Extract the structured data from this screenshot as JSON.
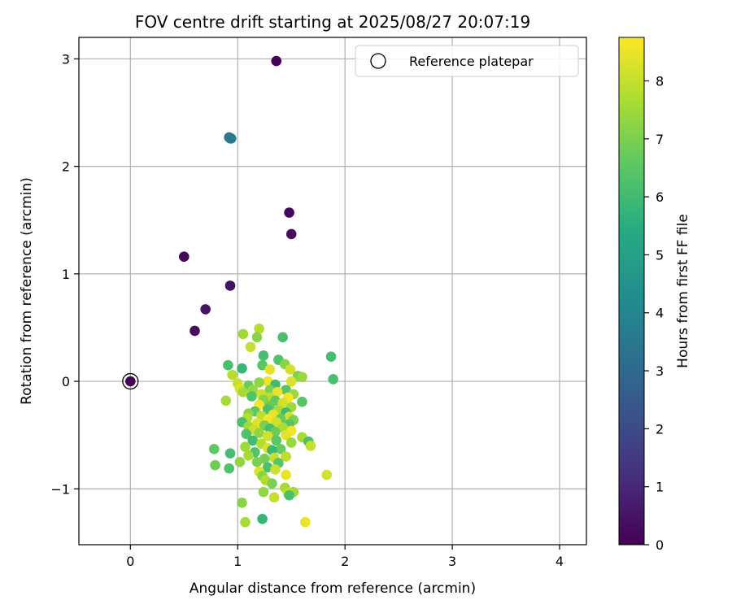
{
  "chart_data": {
    "type": "scatter",
    "title": "FOV centre drift starting at 2025/08/27 20:07:19",
    "xlabel": "Angular distance from reference (arcmin)",
    "ylabel": "Rotation from reference (arcmin)",
    "xlim": [
      -0.48,
      4.25
    ],
    "ylim": [
      -1.52,
      3.2
    ],
    "xticks": [
      0,
      1,
      2,
      3,
      4
    ],
    "xtick_labels": [
      "0",
      "1",
      "2",
      "3",
      "4"
    ],
    "yticks": [
      -1,
      0,
      1,
      2,
      3
    ],
    "ytick_labels": [
      "−1",
      "0",
      "1",
      "2",
      "3"
    ],
    "grid": true,
    "legend_position": "top-right",
    "colorbar": {
      "label": "Hours from first FF file",
      "colormap": "viridis",
      "range": [
        0,
        8.75
      ],
      "ticks": [
        0,
        1,
        2,
        3,
        4,
        5,
        6,
        7,
        8
      ],
      "tick_labels": [
        "0",
        "1",
        "2",
        "3",
        "4",
        "5",
        "6",
        "7",
        "8"
      ]
    },
    "series": [
      {
        "name": "Reference platepar",
        "marker": "open-circle",
        "points": [
          [
            0,
            0,
            0
          ]
        ]
      },
      {
        "marker": "filled-circle",
        "value_key": "hours",
        "points": [
          [
            1.36,
            2.98,
            0.1
          ],
          [
            1.48,
            1.57,
            0.2
          ],
          [
            1.5,
            1.37,
            0.3
          ],
          [
            0.5,
            1.16,
            0.2
          ],
          [
            0.93,
            0.89,
            0.4
          ],
          [
            0.7,
            0.67,
            0.5
          ],
          [
            0.6,
            0.47,
            0.3
          ],
          [
            0.93,
            2.26,
            3.6
          ],
          [
            0.94,
            2.26,
            3.7
          ],
          [
            0.92,
            2.27,
            3.5
          ],
          [
            1.2,
            0.49,
            7.8
          ],
          [
            1.05,
            0.44,
            7.5
          ],
          [
            1.18,
            0.41,
            7.2
          ],
          [
            1.42,
            0.41,
            6.2
          ],
          [
            1.12,
            0.32,
            8.0
          ],
          [
            1.24,
            0.24,
            6.1
          ],
          [
            1.87,
            0.23,
            6.1
          ],
          [
            1.38,
            0.2,
            6.3
          ],
          [
            1.44,
            0.16,
            7.2
          ],
          [
            0.91,
            0.15,
            6.2
          ],
          [
            1.23,
            0.15,
            6.5
          ],
          [
            1.04,
            0.12,
            5.8
          ],
          [
            1.3,
            0.11,
            8.4
          ],
          [
            1.49,
            0.11,
            8.2
          ],
          [
            0.95,
            0.06,
            7.8
          ],
          [
            1.56,
            0.05,
            7.0
          ],
          [
            1.6,
            0.04,
            7.4
          ],
          [
            1.89,
            0.02,
            6.2
          ],
          [
            1.28,
            0.0,
            8.6
          ],
          [
            1.5,
            0.0,
            8.3
          ],
          [
            1.2,
            -0.01,
            7.3
          ],
          [
            1.0,
            -0.02,
            8.0
          ],
          [
            1.35,
            -0.03,
            6.0
          ],
          [
            1.1,
            -0.04,
            6.7
          ],
          [
            1.02,
            -0.07,
            8.3
          ],
          [
            1.14,
            -0.08,
            7.4
          ],
          [
            1.3,
            -0.08,
            7.0
          ],
          [
            1.45,
            -0.08,
            6.4
          ],
          [
            1.05,
            -0.1,
            7.6
          ],
          [
            1.37,
            -0.1,
            8.5
          ],
          [
            1.52,
            -0.12,
            7.4
          ],
          [
            1.22,
            -0.12,
            8.1
          ],
          [
            1.13,
            -0.14,
            6.3
          ],
          [
            1.3,
            -0.15,
            7.9
          ],
          [
            1.47,
            -0.15,
            8.6
          ],
          [
            1.24,
            -0.17,
            7.2
          ],
          [
            0.89,
            -0.18,
            7.6
          ],
          [
            1.35,
            -0.18,
            6.6
          ],
          [
            1.6,
            -0.19,
            6.4
          ],
          [
            1.42,
            -0.2,
            8.2
          ],
          [
            1.2,
            -0.22,
            8.7
          ],
          [
            1.3,
            -0.23,
            6.8
          ],
          [
            1.5,
            -0.24,
            7.5
          ],
          [
            1.28,
            -0.26,
            6.2
          ],
          [
            1.38,
            -0.27,
            7.7
          ],
          [
            1.16,
            -0.28,
            6.5
          ],
          [
            1.45,
            -0.29,
            6.0
          ],
          [
            1.1,
            -0.3,
            7.2
          ],
          [
            1.33,
            -0.31,
            8.5
          ],
          [
            1.22,
            -0.32,
            7.9
          ],
          [
            1.48,
            -0.33,
            8.2
          ],
          [
            1.09,
            -0.34,
            7.8
          ],
          [
            1.4,
            -0.35,
            6.7
          ],
          [
            1.28,
            -0.36,
            8.6
          ],
          [
            1.52,
            -0.36,
            7.0
          ],
          [
            1.04,
            -0.38,
            6.2
          ],
          [
            1.36,
            -0.38,
            8.1
          ],
          [
            1.18,
            -0.39,
            8.4
          ],
          [
            1.48,
            -0.4,
            6.4
          ],
          [
            1.25,
            -0.41,
            7.0
          ],
          [
            1.1,
            -0.42,
            7.5
          ],
          [
            1.42,
            -0.43,
            7.7
          ],
          [
            1.3,
            -0.44,
            6.1
          ],
          [
            1.15,
            -0.45,
            8.1
          ],
          [
            1.5,
            -0.46,
            8.6
          ],
          [
            1.35,
            -0.47,
            6.8
          ],
          [
            1.2,
            -0.48,
            7.3
          ],
          [
            1.08,
            -0.49,
            6.3
          ],
          [
            1.45,
            -0.5,
            8.4
          ],
          [
            1.28,
            -0.51,
            8.2
          ],
          [
            1.6,
            -0.52,
            7.6
          ],
          [
            1.14,
            -0.55,
            6.0
          ],
          [
            1.36,
            -0.55,
            6.5
          ],
          [
            1.66,
            -0.56,
            6.2
          ],
          [
            1.5,
            -0.57,
            7.4
          ],
          [
            1.22,
            -0.58,
            7.8
          ],
          [
            1.68,
            -0.6,
            8.0
          ],
          [
            1.07,
            -0.61,
            7.5
          ],
          [
            1.28,
            -0.62,
            8.3
          ],
          [
            1.4,
            -0.63,
            6.7
          ],
          [
            1.32,
            -0.64,
            5.9
          ],
          [
            0.78,
            -0.63,
            6.6
          ],
          [
            1.16,
            -0.66,
            6.3
          ],
          [
            0.93,
            -0.67,
            6.1
          ],
          [
            1.1,
            -0.69,
            7.6
          ],
          [
            1.45,
            -0.7,
            7.9
          ],
          [
            1.34,
            -0.71,
            8.0
          ],
          [
            1.25,
            -0.72,
            6.9
          ],
          [
            1.02,
            -0.75,
            7.3
          ],
          [
            1.18,
            -0.75,
            7.0
          ],
          [
            1.38,
            -0.76,
            6.4
          ],
          [
            0.79,
            -0.78,
            6.8
          ],
          [
            1.28,
            -0.8,
            6.2
          ],
          [
            0.92,
            -0.81,
            6.3
          ],
          [
            1.35,
            -0.82,
            8.1
          ],
          [
            1.2,
            -0.84,
            8.3
          ],
          [
            1.45,
            -0.87,
            8.5
          ],
          [
            1.83,
            -0.87,
            8.2
          ],
          [
            1.23,
            -0.88,
            7.2
          ],
          [
            1.26,
            -0.92,
            7.8
          ],
          [
            1.32,
            -0.95,
            7.0
          ],
          [
            1.44,
            -0.99,
            7.6
          ],
          [
            1.24,
            -1.03,
            7.3
          ],
          [
            1.52,
            -1.03,
            7.5
          ],
          [
            1.47,
            -1.04,
            7.9
          ],
          [
            1.48,
            -1.06,
            6.2
          ],
          [
            1.34,
            -1.08,
            8.0
          ],
          [
            1.04,
            -1.13,
            7.2
          ],
          [
            1.23,
            -1.28,
            5.8
          ],
          [
            1.07,
            -1.31,
            7.6
          ],
          [
            1.63,
            -1.31,
            8.5
          ]
        ]
      }
    ]
  }
}
